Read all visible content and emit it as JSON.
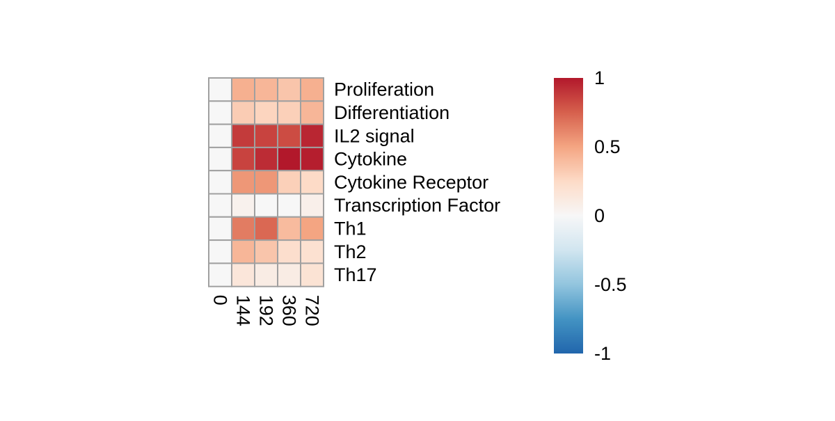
{
  "chart_data": {
    "type": "heatmap",
    "title": "",
    "xlabel": "",
    "ylabel": "",
    "columns": [
      "0",
      "144",
      "192",
      "360",
      "720"
    ],
    "rows": [
      "Proliferation",
      "Differentiation",
      "IL2 signal",
      "Cytokine",
      "Cytokine Receptor",
      "Transcription Factor",
      "Th1",
      "Th2",
      "Th17"
    ],
    "values": [
      [
        0.0,
        0.45,
        0.42,
        0.35,
        0.45
      ],
      [
        0.0,
        0.32,
        0.28,
        0.3,
        0.42
      ],
      [
        0.0,
        0.88,
        0.85,
        0.82,
        0.95
      ],
      [
        0.0,
        0.85,
        0.93,
        1.0,
        0.98
      ],
      [
        0.0,
        0.55,
        0.55,
        0.3,
        0.25
      ],
      [
        0.0,
        0.05,
        0.0,
        0.0,
        0.07
      ],
      [
        0.0,
        0.65,
        0.72,
        0.4,
        0.5
      ],
      [
        0.0,
        0.42,
        0.35,
        0.22,
        0.2
      ],
      [
        0.0,
        0.15,
        0.1,
        0.1,
        0.18
      ]
    ],
    "color_scale": {
      "min": -1,
      "max": 1,
      "low_color": "#2166ac",
      "mid_color": "#f7f7f7",
      "high_color": "#b2182b",
      "ticks": [
        "1",
        "0.5",
        "0",
        "-0.5",
        "-1"
      ]
    },
    "cell_border_color": "#a0a0a0",
    "legend_position": "right"
  }
}
